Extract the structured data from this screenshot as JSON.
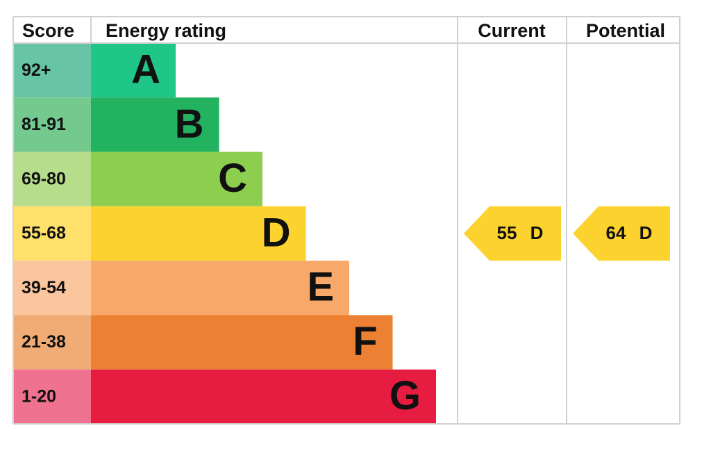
{
  "header": {
    "score": "Score",
    "rating": "Energy rating",
    "current": "Current",
    "potential": "Potential"
  },
  "bands": [
    {
      "score": "92+",
      "letter": "A",
      "color": "#1fc688",
      "score_color": "#67c4a4"
    },
    {
      "score": "81-91",
      "letter": "B",
      "color": "#23b25f",
      "score_color": "#74c98e"
    },
    {
      "score": "69-80",
      "letter": "C",
      "color": "#8dce4f",
      "score_color": "#b6dd8c"
    },
    {
      "score": "55-68",
      "letter": "D",
      "color": "#fcd22e",
      "score_color": "#fee06a"
    },
    {
      "score": "39-54",
      "letter": "E",
      "color": "#f8a96a",
      "score_color": "#fbc59e"
    },
    {
      "score": "21-38",
      "letter": "F",
      "color": "#ed8133",
      "score_color": "#f1ac76"
    },
    {
      "score": "1-20",
      "letter": "G",
      "color": "#e61c40",
      "score_color": "#ef7290"
    }
  ],
  "current": {
    "value": 55,
    "letter": "D"
  },
  "potential": {
    "value": 64,
    "letter": "D"
  }
}
